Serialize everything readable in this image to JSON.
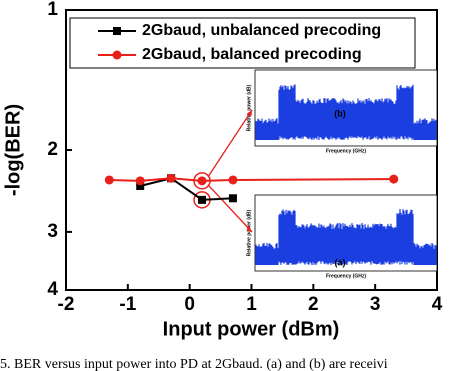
{
  "chart_data": {
    "type": "line",
    "xlabel": "Input power (dBm)",
    "ylabel": "-log(BER)",
    "xlim": [
      -2,
      4
    ],
    "xticks": [
      -2,
      -1,
      0,
      1,
      2,
      3,
      4
    ],
    "ylim": [
      1,
      4
    ],
    "yticks": [
      1,
      2,
      3,
      4
    ],
    "y_log": true,
    "y_inverted": true,
    "series": [
      {
        "name": "2Gbaud, unbalanced precoding",
        "color": "#000000",
        "marker": "square",
        "x": [
          -0.8,
          -0.3,
          0.2,
          0.7
        ],
        "values": [
          2.39,
          2.3,
          2.56,
          2.54
        ]
      },
      {
        "name": "2Gbaud, balanced precoding",
        "color": "#e8201a",
        "marker": "circle",
        "x": [
          -1.3,
          -0.8,
          -0.3,
          0.2,
          0.7,
          3.3
        ],
        "values": [
          2.32,
          2.33,
          2.3,
          2.33,
          2.32,
          2.31
        ]
      }
    ],
    "legend": "top-left",
    "insets": [
      {
        "label": "(b)",
        "xlabel": "Frequency (GHz)",
        "ylabel": "Relative power (dB)"
      },
      {
        "label": "(a)",
        "xlabel": "Frequency (GHz)",
        "ylabel": "Relative power (dB)"
      }
    ],
    "caption": "5.   BER versus input power into PD at 2Gbaud. (a) and (b) are receivi"
  }
}
